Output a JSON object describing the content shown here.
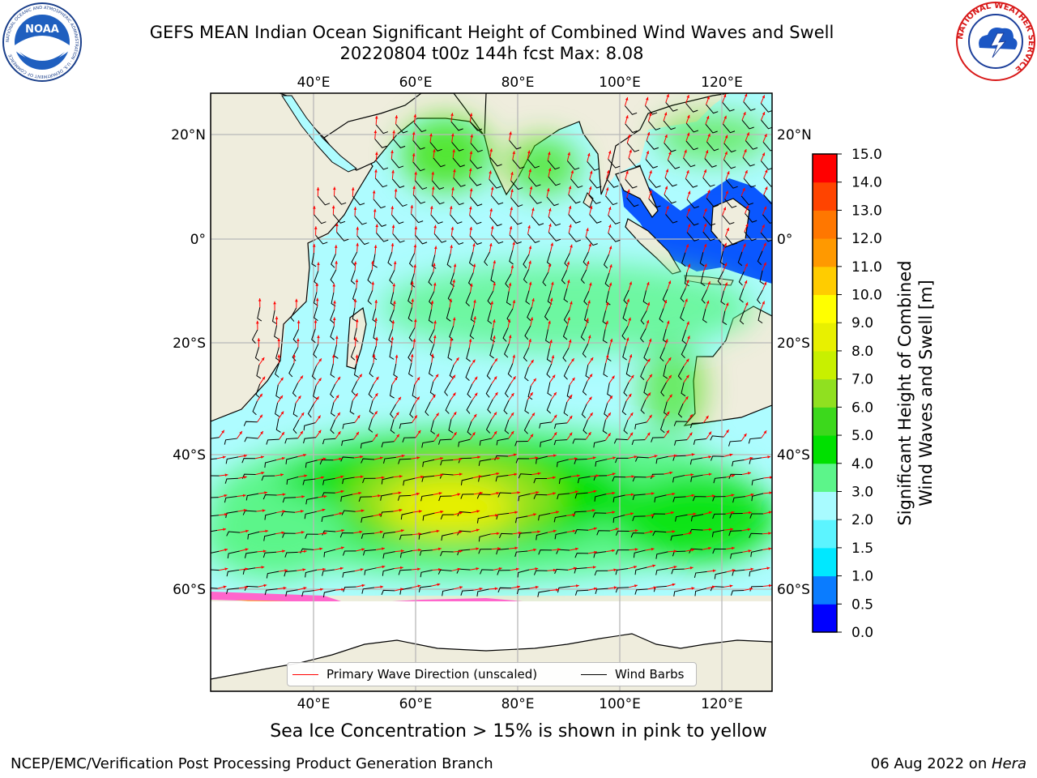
{
  "header": {
    "title_line1": "GEFS MEAN Indian Ocean Significant Height of Combined Wind Waves and Swell",
    "title_line2": "20220804 t00z 144h fcst   Max: 8.08"
  },
  "logos": {
    "noaa": {
      "text": "NOAA",
      "ring_text": "NATIONAL OCEANIC AND ATMOSPHERIC ADMINISTRATION · U.S. DEPARTMENT OF COMMERCE"
    },
    "nws": {
      "ring_text": "NATIONAL WEATHER SERVICE"
    }
  },
  "map": {
    "lon_labels": [
      "40°E",
      "60°E",
      "80°E",
      "100°E",
      "120°E"
    ],
    "lat_labels": [
      "20°N",
      "0°",
      "20°S",
      "40°S",
      "60°S"
    ],
    "lon_ticks": [
      40,
      60,
      80,
      100,
      120
    ],
    "lat_ticks": [
      20,
      0,
      -20,
      -40,
      -60
    ],
    "extent": {
      "lon": [
        20,
        130
      ],
      "lat": [
        -70,
        28
      ]
    }
  },
  "colorbar": {
    "label_line1": "Significant Height of Combined",
    "label_line2": "Wind Waves and Swell [m]",
    "ticks": [
      "0.0",
      "0.5",
      "1.0",
      "1.5",
      "2.0",
      "3.0",
      "4.0",
      "5.0",
      "6.0",
      "7.0",
      "8.0",
      "9.0",
      "10.0",
      "11.0",
      "12.0",
      "13.0",
      "14.0",
      "15.0"
    ],
    "colors": [
      "#0000ff",
      "#0a7cff",
      "#00e8ff",
      "#5cf4ff",
      "#a8fbff",
      "#5cf58a",
      "#00e000",
      "#3cd81c",
      "#90e020",
      "#c8f000",
      "#e8f000",
      "#ffff00",
      "#ffcc00",
      "#ff9900",
      "#ff7700",
      "#ff4400",
      "#ff0000"
    ]
  },
  "legend": {
    "primary_wave": "Primary Wave Direction (unscaled)",
    "wind_barbs": "Wind Barbs",
    "primary_wave_color": "#ff0000",
    "wind_barbs_color": "#000000"
  },
  "note": "Sea Ice Concentration > 15% is shown in pink to yellow",
  "footer": {
    "left": "NCEP/EMC/Verification Post Processing Product Generation Branch",
    "date": "06 Aug 2022 on ",
    "host": "Hera"
  }
}
